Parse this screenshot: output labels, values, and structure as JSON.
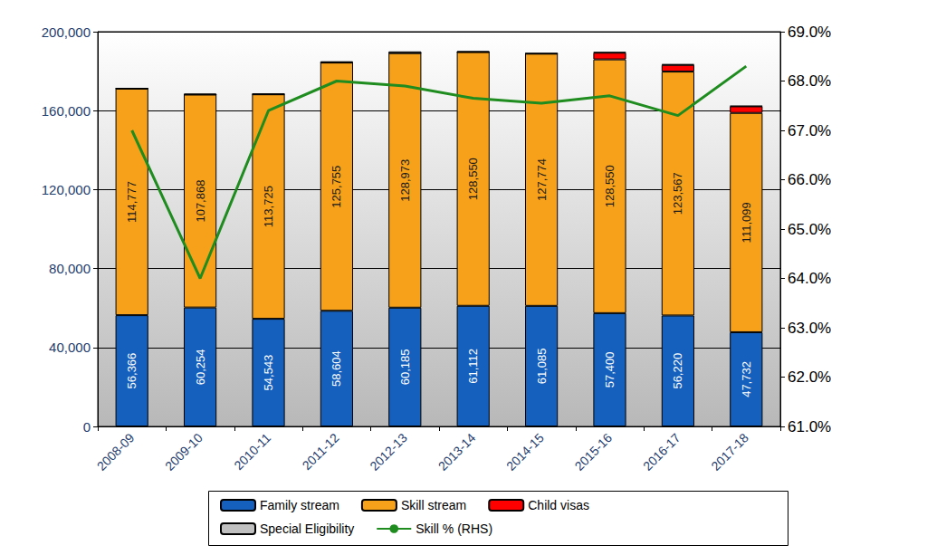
{
  "chart_data": {
    "type": "bar",
    "stacked": true,
    "grid": true,
    "legend": "bottom",
    "categories": [
      "2008-09",
      "2009-10",
      "2010-11",
      "2011-12",
      "2012-13",
      "2013-14",
      "2014-15",
      "2015-16",
      "2016-17",
      "2017-18"
    ],
    "ylim": [
      0,
      200000
    ],
    "yticks": [
      0,
      {
        "value": 40000,
        "label": "40,000"
      },
      {
        "value": 80000,
        "label": "80,000"
      },
      {
        "value": 120000,
        "label": "120,000"
      },
      {
        "value": 160000,
        "label": "160,000"
      },
      {
        "value": 200000,
        "label": "200,000"
      }
    ],
    "y2lim": [
      61,
      69
    ],
    "y2ticks": [
      {
        "value": 61,
        "label": "61.0%"
      },
      {
        "value": 62,
        "label": "62.0%"
      },
      {
        "value": 63,
        "label": "63.0%"
      },
      {
        "value": 64,
        "label": "64.0%"
      },
      {
        "value": 65,
        "label": "65.0%"
      },
      {
        "value": 66,
        "label": "66.0%"
      },
      {
        "value": 67,
        "label": "67.0%"
      },
      {
        "value": 68,
        "label": "68.0%"
      },
      {
        "value": 69,
        "label": "69.0%"
      }
    ],
    "series": [
      {
        "name": "Family stream",
        "type": "bar",
        "color": "#1560bd",
        "data_labels": true,
        "values": [
          56366,
          60254,
          54543,
          58604,
          60185,
          61112,
          61085,
          57400,
          56220,
          47732
        ],
        "value_labels": [
          "56,366",
          "60,254",
          "54,543",
          "58,604",
          "60,185",
          "61,112",
          "61,085",
          "57,400",
          "56,220",
          "47,732"
        ]
      },
      {
        "name": "Skill stream",
        "type": "bar",
        "color": "#f7a11a",
        "data_labels": true,
        "values": [
          114777,
          107868,
          113725,
          125755,
          128973,
          128550,
          127774,
          128550,
          123567,
          111099
        ],
        "value_labels": [
          "114,777",
          "107,868",
          "113,725",
          "125,755",
          "128,973",
          "128,550",
          "127,774",
          "128,550",
          "123,567",
          "111,099"
        ]
      },
      {
        "name": "Child visas",
        "type": "bar",
        "color": "#ff0000",
        "data_labels": false,
        "values": [
          0,
          0,
          0,
          0,
          0,
          0,
          0,
          3400,
          3350,
          3350
        ]
      },
      {
        "name": "Special Eligibility",
        "type": "bar",
        "color": "#c0c0c0",
        "data_labels": false,
        "values": [
          175,
          501,
          417,
          639,
          842,
          503,
          238,
          308,
          421,
          236
        ]
      },
      {
        "name": "Skill % (RHS)",
        "type": "line",
        "axis": "y2",
        "color": "#1e8c1e",
        "marker": "none",
        "line_style": "solid",
        "data_labels": false,
        "values": [
          67.0,
          64.0,
          67.4,
          68.0,
          67.9,
          67.65,
          67.55,
          67.7,
          67.3,
          68.3
        ]
      }
    ]
  }
}
